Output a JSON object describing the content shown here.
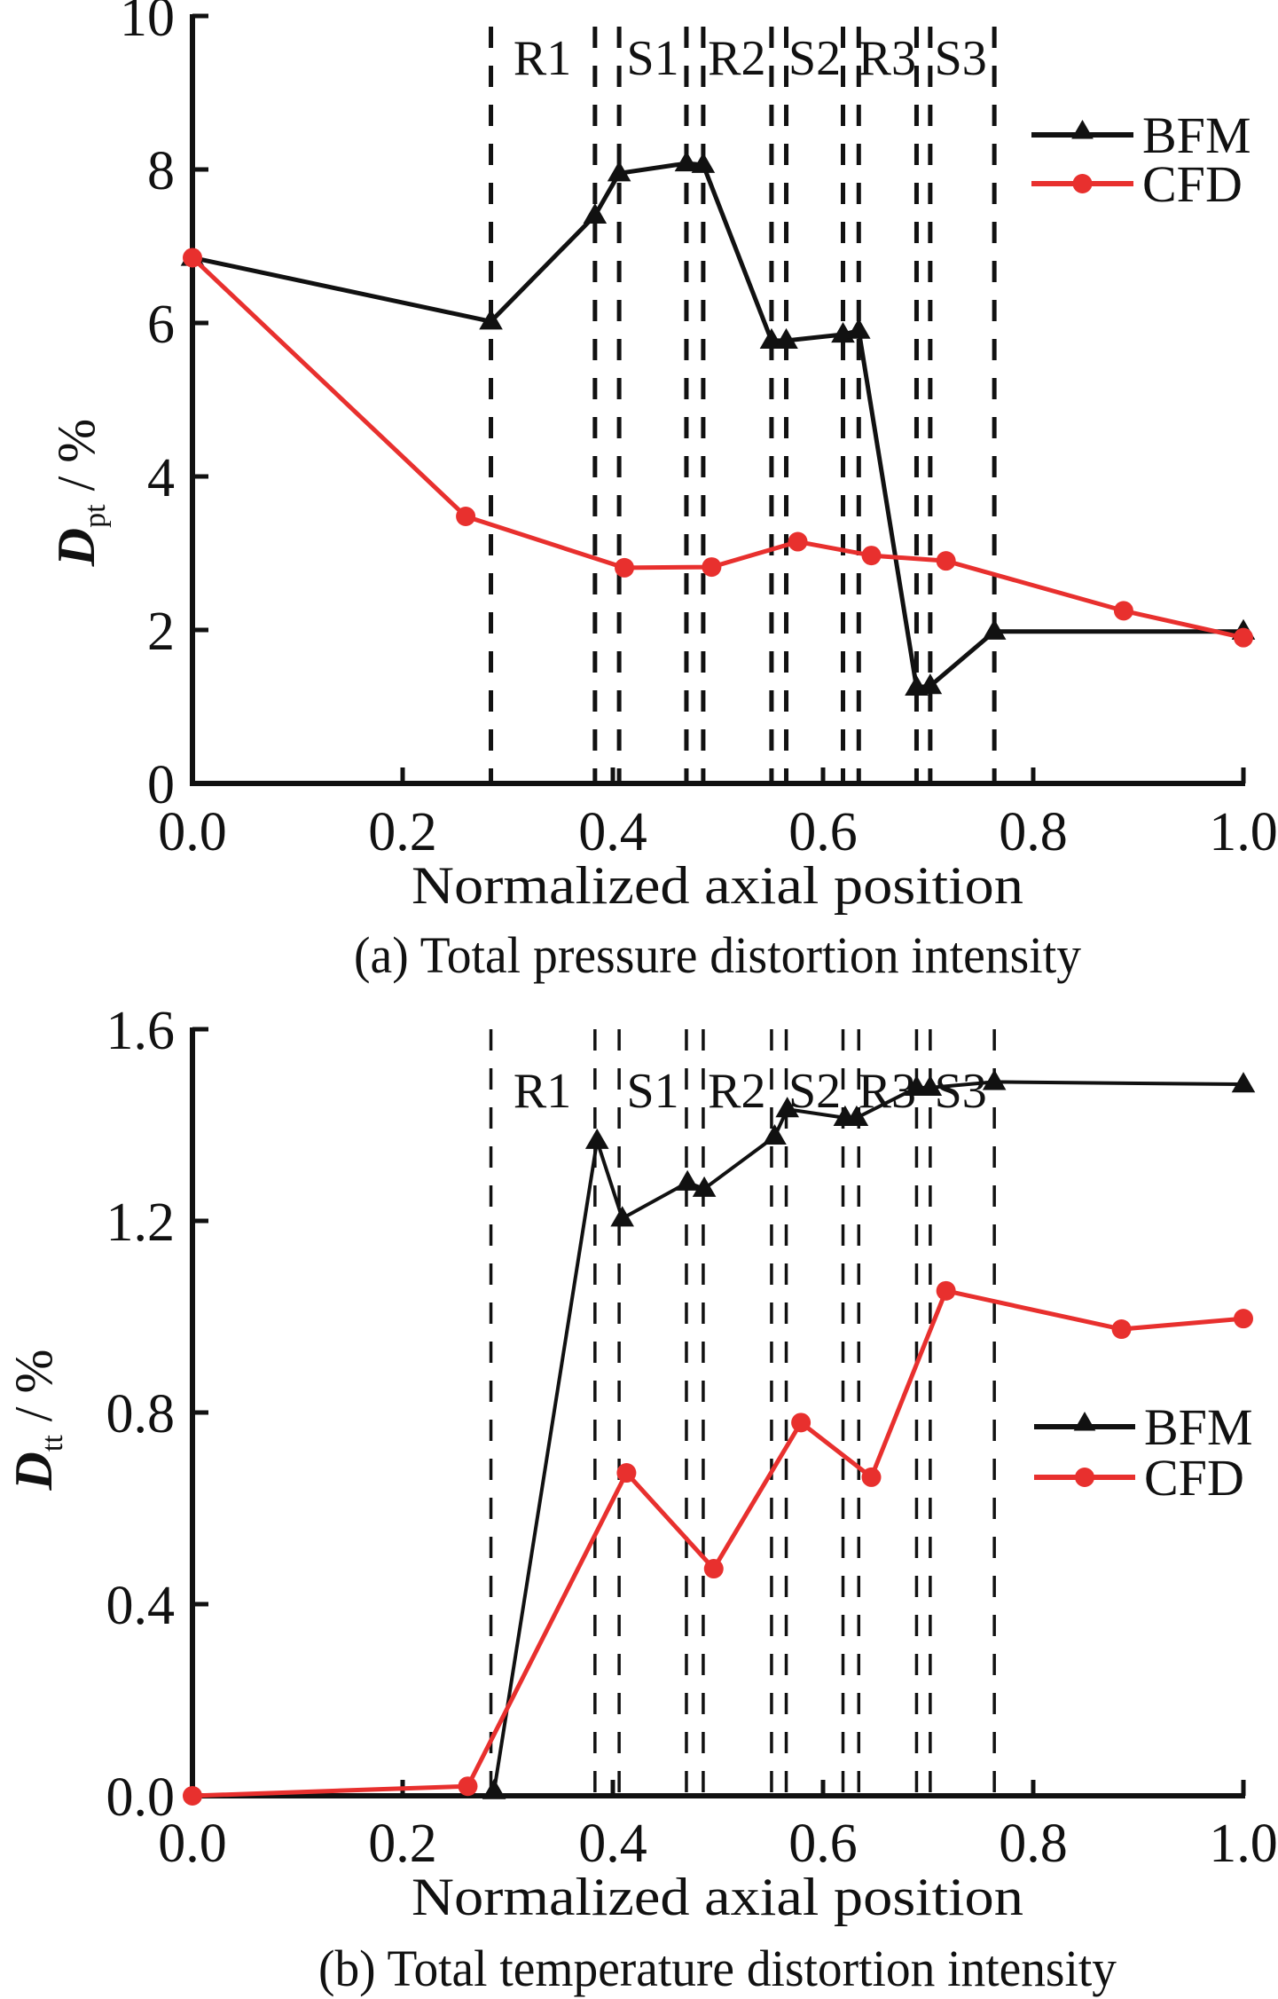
{
  "colors": {
    "bfm": "#111111",
    "cfd": "#e8302e",
    "axis": "#111111",
    "dash": "#111111"
  },
  "chart_data": [
    {
      "id": "a",
      "type": "line",
      "caption": "(a) Total pressure distortion intensity",
      "xlabel": "Normalized axial position",
      "ylabel_main": "D",
      "ylabel_sub": "pt",
      "ylabel_unit": " / %",
      "xlim": [
        0,
        1.0
      ],
      "ylim": [
        0,
        10
      ],
      "xticks": [
        0.0,
        0.2,
        0.4,
        0.6,
        0.8,
        1.0
      ],
      "xtick_labels": [
        "0.0",
        "0.2",
        "0.4",
        "0.6",
        "0.8",
        "1.0"
      ],
      "yticks": [
        0,
        2,
        4,
        6,
        8,
        10
      ],
      "ytick_labels": [
        "0",
        "2",
        "4",
        "6",
        "8",
        "10"
      ],
      "grid": false,
      "legend_position": "top-right",
      "blade_row_boundaries": [
        0.284,
        0.383,
        0.406,
        0.47,
        0.486,
        0.551,
        0.565,
        0.619,
        0.634,
        0.689,
        0.702,
        0.763
      ],
      "blade_row_labels": [
        {
          "label": "R1",
          "x": 0.333
        },
        {
          "label": "S1",
          "x": 0.438
        },
        {
          "label": "R2",
          "x": 0.518
        },
        {
          "label": "S2",
          "x": 0.592
        },
        {
          "label": "R3",
          "x": 0.661
        },
        {
          "label": "S3",
          "x": 0.731
        }
      ],
      "series": [
        {
          "name": "BFM",
          "marker": "triangle",
          "x": [
            0.0,
            0.284,
            0.383,
            0.406,
            0.47,
            0.486,
            0.551,
            0.565,
            0.619,
            0.634,
            0.689,
            0.702,
            0.763,
            1.0
          ],
          "y": [
            6.85,
            6.02,
            7.4,
            7.95,
            8.08,
            8.06,
            5.77,
            5.77,
            5.85,
            5.9,
            1.25,
            1.27,
            1.98,
            1.98
          ]
        },
        {
          "name": "CFD",
          "marker": "circle",
          "x": [
            0.0,
            0.26,
            0.411,
            0.494,
            0.576,
            0.646,
            0.717,
            0.886,
            1.0
          ],
          "y": [
            6.85,
            3.48,
            2.81,
            2.82,
            3.15,
            2.97,
            2.9,
            2.25,
            1.9
          ]
        }
      ]
    },
    {
      "id": "b",
      "type": "line",
      "caption": "(b) Total temperature distortion intensity",
      "xlabel": "Normalized axial position",
      "ylabel_main": "D",
      "ylabel_sub": "tt",
      "ylabel_unit": " / %",
      "xlim": [
        0,
        1.0
      ],
      "ylim": [
        0,
        1.6
      ],
      "xticks": [
        0.0,
        0.2,
        0.4,
        0.6,
        0.8,
        1.0
      ],
      "xtick_labels": [
        "0.0",
        "0.2",
        "0.4",
        "0.6",
        "0.8",
        "1.0"
      ],
      "yticks": [
        0.0,
        0.4,
        0.8,
        1.2,
        1.6
      ],
      "ytick_labels": [
        "0.0",
        "0.4",
        "0.8",
        "1.2",
        "1.6"
      ],
      "grid": false,
      "legend_position": "center-right",
      "blade_row_boundaries": [
        0.284,
        0.383,
        0.406,
        0.47,
        0.486,
        0.551,
        0.565,
        0.619,
        0.634,
        0.689,
        0.702,
        0.763
      ],
      "blade_row_labels": [
        {
          "label": "R1",
          "x": 0.333
        },
        {
          "label": "S1",
          "x": 0.438
        },
        {
          "label": "R2",
          "x": 0.518
        },
        {
          "label": "S2",
          "x": 0.592
        },
        {
          "label": "R3",
          "x": 0.661
        },
        {
          "label": "S3",
          "x": 0.731
        }
      ],
      "series": [
        {
          "name": "BFM",
          "marker": "triangle",
          "x": [
            0.287,
            0.385,
            0.409,
            0.471,
            0.487,
            0.554,
            0.566,
            0.621,
            0.632,
            0.689,
            0.702,
            0.763,
            1.0
          ],
          "y": [
            0.01,
            1.367,
            1.205,
            1.28,
            1.267,
            1.376,
            1.433,
            1.415,
            1.415,
            1.478,
            1.478,
            1.49,
            1.485
          ]
        },
        {
          "name": "CFD",
          "marker": "circle",
          "x": [
            0.0,
            0.262,
            0.413,
            0.496,
            0.579,
            0.646,
            0.717,
            0.884,
            1.0
          ],
          "y": [
            0.0,
            0.02,
            0.674,
            0.474,
            0.779,
            0.665,
            1.054,
            0.974,
            0.996
          ]
        }
      ]
    }
  ]
}
